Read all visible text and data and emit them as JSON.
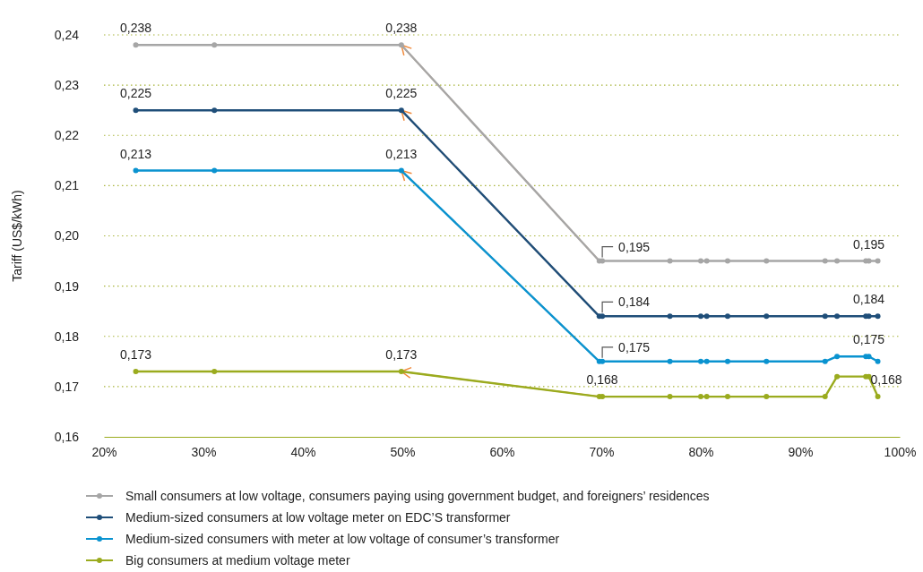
{
  "chart_data": {
    "type": "line",
    "ylabel": "Tariff (US$/kWh)",
    "x": [
      23.2,
      31.1,
      49.9,
      69.8,
      70.1,
      76.9,
      80.0,
      80.6,
      82.7,
      86.6,
      92.5,
      93.7,
      96.6,
      96.9,
      97.8
    ],
    "series": [
      {
        "name": "Small consumers at low voltage, consumers paying using government budget, and foreigners’ residences",
        "color": "#a6a6a6",
        "values": [
          0.238,
          0.238,
          0.238,
          0.195,
          0.195,
          0.195,
          0.195,
          0.195,
          0.195,
          0.195,
          0.195,
          0.195,
          0.195,
          0.195,
          0.195
        ]
      },
      {
        "name": "Medium-sized consumers at low voltage meter on EDC’S transformer",
        "color": "#1f4e79",
        "values": [
          0.225,
          0.225,
          0.225,
          0.184,
          0.184,
          0.184,
          0.184,
          0.184,
          0.184,
          0.184,
          0.184,
          0.184,
          0.184,
          0.184,
          0.184
        ]
      },
      {
        "name": "Medium-sized consumers with meter at low voltage of consumer’s transformer",
        "color": "#0a93d0",
        "values": [
          0.213,
          0.213,
          0.213,
          0.175,
          0.175,
          0.175,
          0.175,
          0.175,
          0.175,
          0.175,
          0.175,
          0.176,
          0.176,
          0.176,
          0.175
        ]
      },
      {
        "name": "Big consumers at medium voltage meter",
        "color": "#9aab1e",
        "values": [
          0.173,
          0.173,
          0.173,
          0.168,
          0.168,
          0.168,
          0.168,
          0.168,
          0.168,
          0.168,
          0.168,
          0.172,
          0.172,
          0.172,
          0.168
        ]
      }
    ],
    "xlim": [
      20,
      100
    ],
    "xticks": [
      {
        "value": 20,
        "label": "20%"
      },
      {
        "value": 30,
        "label": "30%"
      },
      {
        "value": 40,
        "label": "40%"
      },
      {
        "value": 50,
        "label": "50%"
      },
      {
        "value": 60,
        "label": "60%"
      },
      {
        "value": 70,
        "label": "70%"
      },
      {
        "value": 80,
        "label": "80%"
      },
      {
        "value": 90,
        "label": "90%"
      },
      {
        "value": 100,
        "label": "100%"
      }
    ],
    "ylim": [
      0.16,
      0.24
    ],
    "yticks": [
      {
        "value": 0.16,
        "label": "0,16"
      },
      {
        "value": 0.17,
        "label": "0,17"
      },
      {
        "value": 0.18,
        "label": "0,18"
      },
      {
        "value": 0.19,
        "label": "0,19"
      },
      {
        "value": 0.2,
        "label": "0,20"
      },
      {
        "value": 0.21,
        "label": "0,21"
      },
      {
        "value": 0.22,
        "label": "0,22"
      },
      {
        "value": 0.23,
        "label": "0,23"
      },
      {
        "value": 0.24,
        "label": "0,24"
      }
    ],
    "grid": "y",
    "legend": "bottom",
    "marker": "circle",
    "line_style": "solid",
    "annotations": [
      {
        "text": "0,238",
        "x": 23.2,
        "y": 0.238
      },
      {
        "text": "0,238",
        "x": 49.9,
        "y": 0.238
      },
      {
        "text": "0,225",
        "x": 23.2,
        "y": 0.225
      },
      {
        "text": "0,225",
        "x": 49.9,
        "y": 0.225
      },
      {
        "text": "0,213",
        "x": 23.2,
        "y": 0.213
      },
      {
        "text": "0,213",
        "x": 49.9,
        "y": 0.213
      },
      {
        "text": "0,173",
        "x": 23.2,
        "y": 0.173
      },
      {
        "text": "0,173",
        "x": 49.9,
        "y": 0.173
      },
      {
        "text": "0,195",
        "x": 70.1,
        "y": 0.195
      },
      {
        "text": "0,195",
        "x": 96.9,
        "y": 0.195
      },
      {
        "text": "0,184",
        "x": 70.1,
        "y": 0.184
      },
      {
        "text": "0,184",
        "x": 96.9,
        "y": 0.184
      },
      {
        "text": "0,175",
        "x": 70.1,
        "y": 0.175
      },
      {
        "text": "0,175",
        "x": 96.9,
        "y": 0.176
      },
      {
        "text": "0,168",
        "x": 70.1,
        "y": 0.168
      },
      {
        "text": "0,168",
        "x": 97.8,
        "y": 0.168
      }
    ]
  }
}
